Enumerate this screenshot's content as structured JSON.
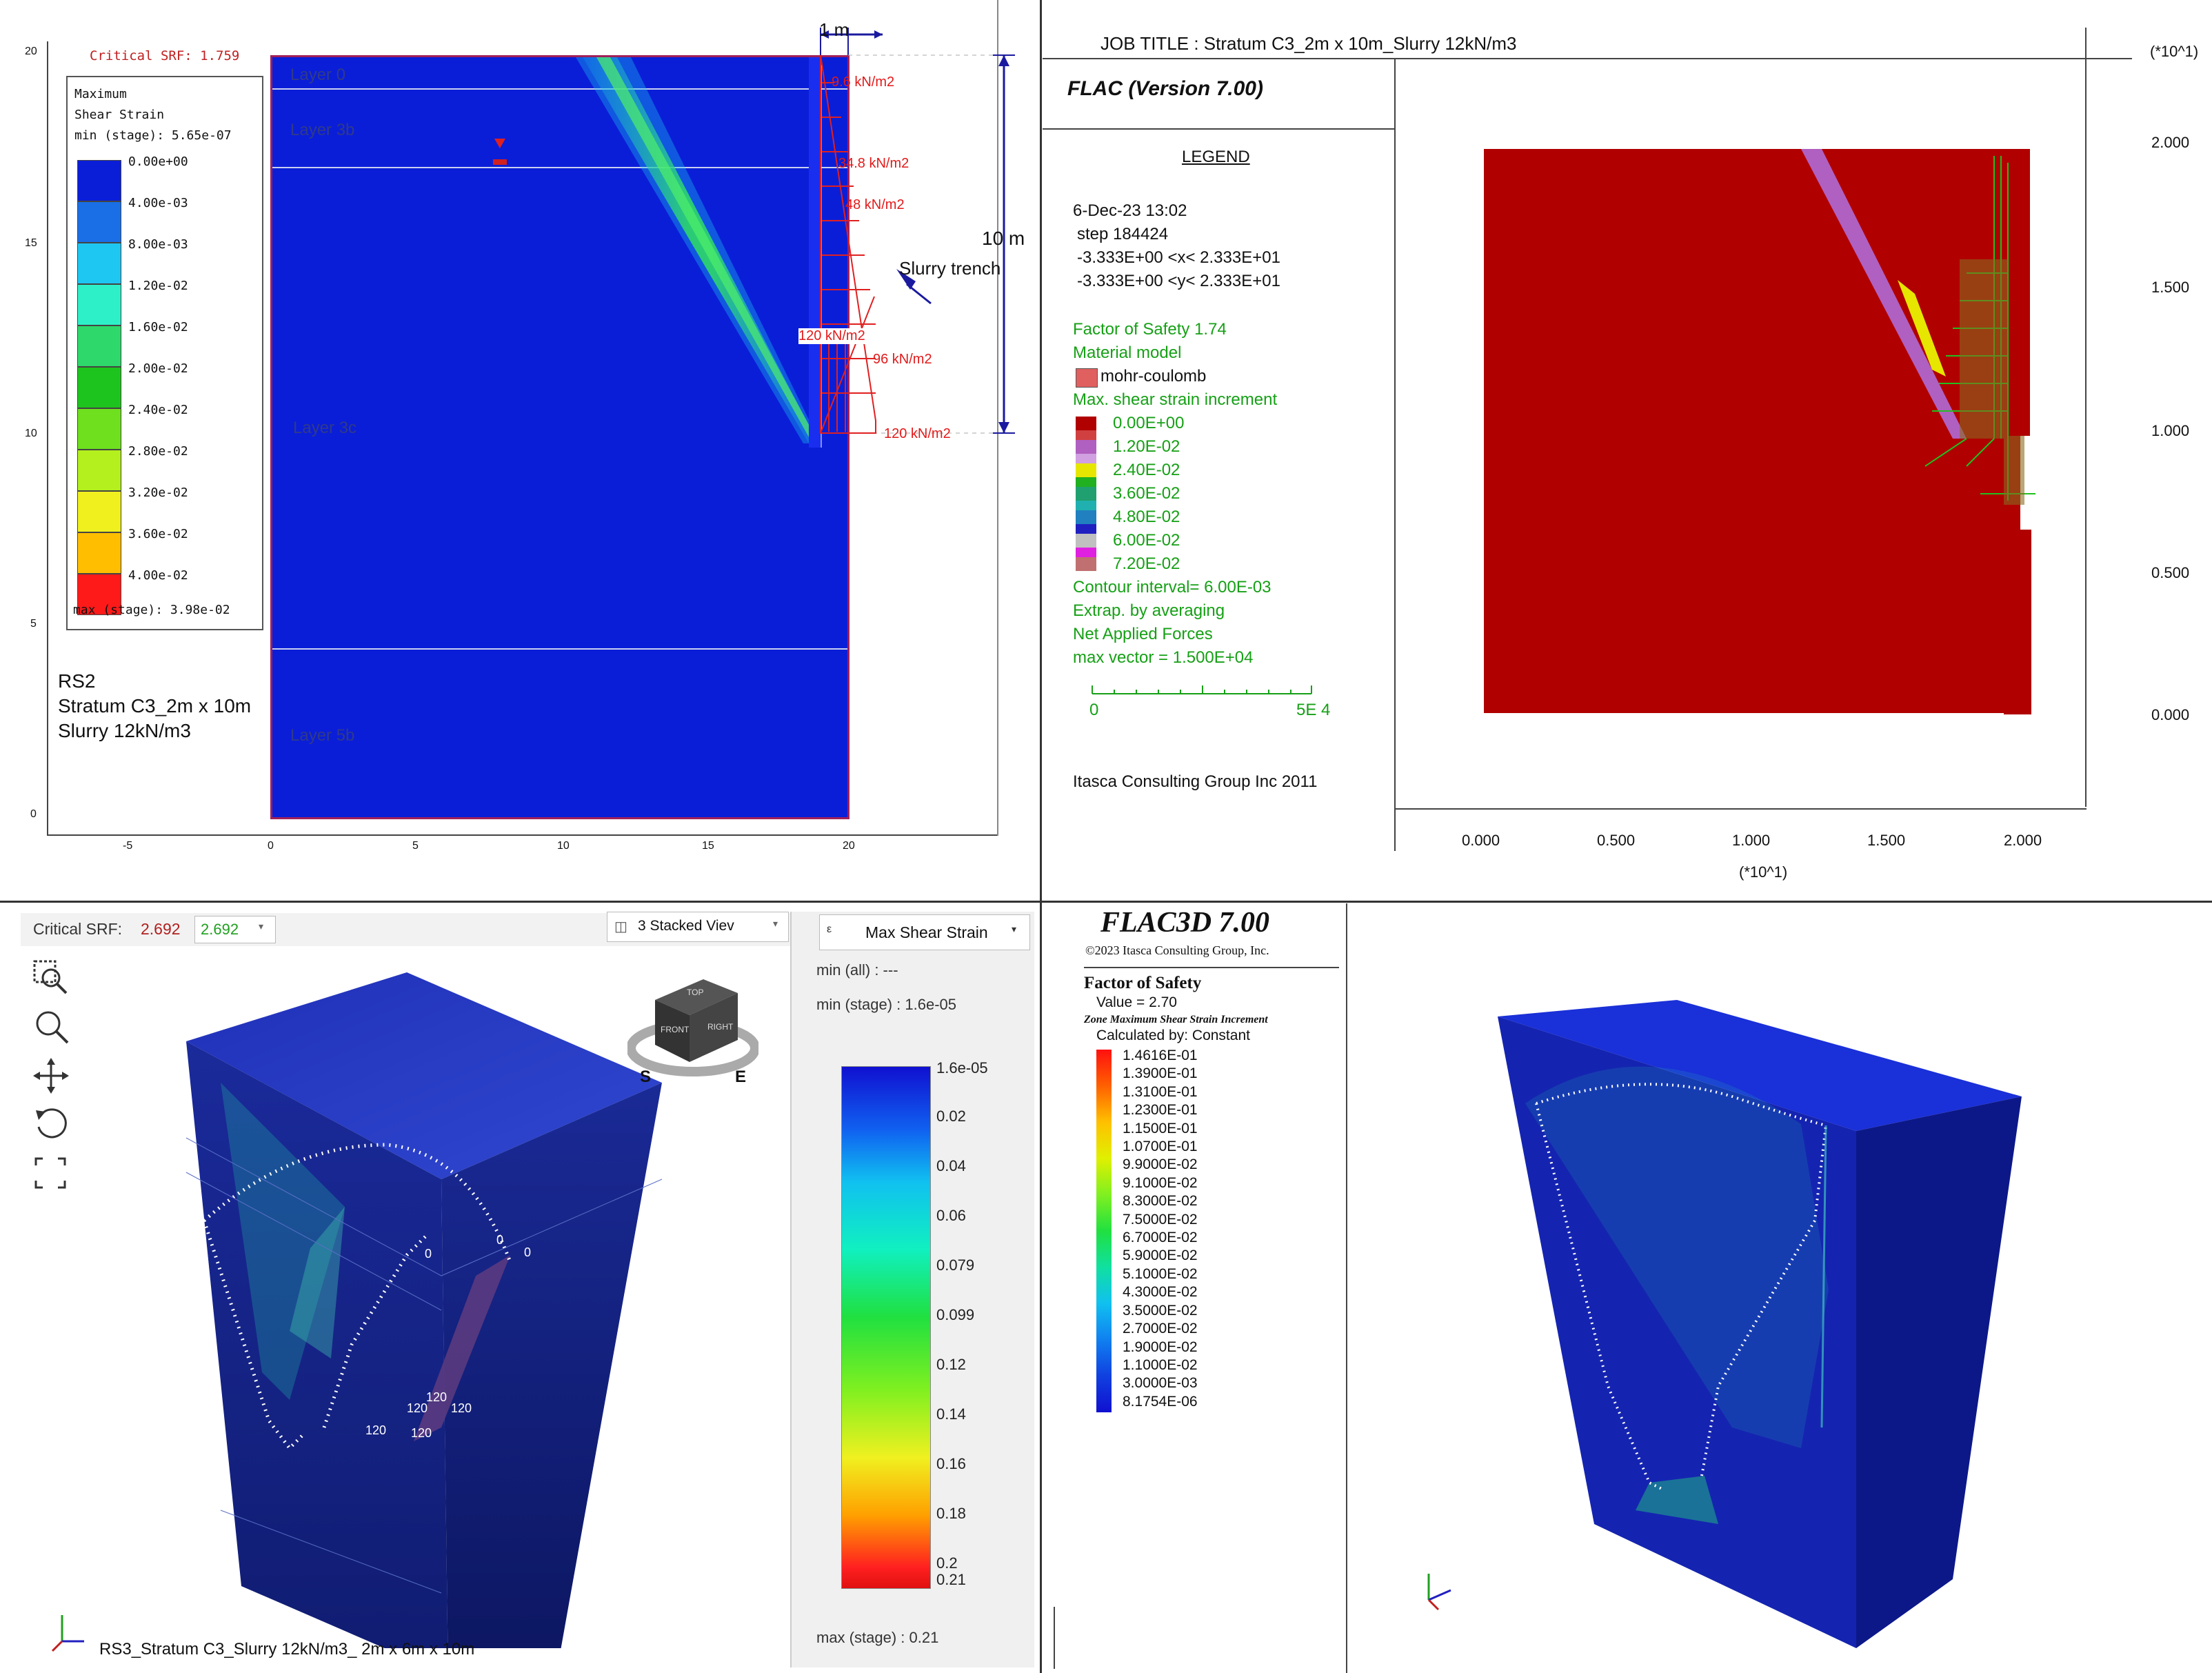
{
  "rs2": {
    "critical_srf": "Critical SRF: 1.759",
    "legend_title_1": "Maximum",
    "legend_title_2": "Shear Strain",
    "legend_min": "min (stage): 5.65e-07",
    "legend_max": "max (stage): 3.98e-02",
    "legend_labels": [
      "0.00e+00",
      "4.00e-03",
      "8.00e-03",
      "1.20e-02",
      "1.60e-02",
      "2.00e-02",
      "2.40e-02",
      "2.80e-02",
      "3.20e-02",
      "3.60e-02",
      "4.00e-02"
    ],
    "legend_colors": [
      "#0a1ed8",
      "#1a6ee6",
      "#1ec6f2",
      "#2ef0c8",
      "#2ed86a",
      "#1ec41e",
      "#6ee01e",
      "#b4f01e",
      "#f0f01e",
      "#ffbe00",
      "#ff1a1a"
    ],
    "info_1": "RS2",
    "info_2": "Stratum C3_2m x 10m",
    "info_3": "Slurry 12kN/m3",
    "layers": [
      "Layer 0",
      "Layer 3b",
      "Layer 3c",
      "Layer 5b"
    ],
    "y_ticks": [
      "20",
      "15",
      "10",
      "5",
      "0"
    ],
    "x_ticks": [
      "-5",
      "0",
      "5",
      "10",
      "15",
      "20"
    ],
    "width_label": "1 m",
    "height_label": "10 m",
    "loads": [
      "9.6 kN/m2",
      "34.8 kN/m2",
      "48 kN/m2",
      "120 kN/m2",
      "96 kN/m2",
      "120 kN/m2"
    ],
    "trench_label": "Slurry trench"
  },
  "flac": {
    "job_title": "JOB TITLE : Stratum C3_2m x 10m_Slurry 12kN/m3",
    "version": "FLAC (Version 7.00)",
    "legend": "LEGEND",
    "date": "6-Dec-23  13:02",
    "step": "step   184424",
    "xrange": "-3.333E+00 <x<  2.333E+01",
    "yrange": "-3.333E+00 <y<  2.333E+01",
    "fos": "Factor of Safety  1.74",
    "material_model": "Material model",
    "mohr": "mohr-coulomb",
    "shear_title": "Max. shear strain increment",
    "shear_labels": [
      "0.00E+00",
      "1.20E-02",
      "2.40E-02",
      "3.60E-02",
      "4.80E-02",
      "6.00E-02",
      "7.20E-02"
    ],
    "shear_colors": [
      "#b00000",
      "#b060c0",
      "#e6e600",
      "#20b020",
      "#20b0b0",
      "#2020c0",
      "#c0c0c0"
    ],
    "contour": "Contour interval=  6.00E-03",
    "extrap": "Extrap. by averaging",
    "net_forces": "Net Applied Forces",
    "max_vector": "max vector =    1.500E+04",
    "scale_0": "0",
    "scale_1": "5E  4",
    "company": "Itasca Consulting Group Inc 2011",
    "multiplier_top": "(*10^1)",
    "multiplier_bottom": "(*10^1)",
    "y_ticks": [
      "2.000",
      "1.500",
      "1.000",
      "0.500",
      "0.000"
    ],
    "x_ticks": [
      "0.000",
      "0.500",
      "1.000",
      "1.500",
      "2.000"
    ]
  },
  "rs3": {
    "critical_srf_label": "Critical SRF:",
    "srf_red": "2.692",
    "srf_dropdown": "2.692",
    "view_button": "3 Stacked Viev",
    "colorbar_title": "Max Shear Strain",
    "min_all": "min (all) :        ---",
    "min_stage": "min (stage) : 1.6e-05",
    "max_stage": "max (stage) : 0.21",
    "colorbar_labels": [
      "1.6e-05",
      "0.02",
      "0.04",
      "0.06",
      "0.079",
      "0.099",
      "0.12",
      "0.14",
      "0.16",
      "0.18",
      "0.2",
      "0.21"
    ],
    "model_caption": "RS3_Stratum C3_Slurry 12kN/m3_ 2m x 6m x 10m",
    "load_labels": [
      "0",
      "0",
      "0",
      "120",
      "120",
      "120",
      "120",
      "120"
    ],
    "cube_labels": [
      "TOP",
      "FRONT",
      "RIGHT"
    ],
    "compass": [
      "S",
      "E"
    ]
  },
  "flac3d": {
    "title": "FLAC3D 7.00",
    "copyright": "©2023 Itasca Consulting Group, Inc.",
    "fos_title": "Factor of Safety",
    "fos_value": "Value = 2.70",
    "zone_title": "Zone Maximum Shear Strain Increment",
    "calc": "Calculated by: Constant",
    "labels": [
      "1.4616E-01",
      "1.3900E-01",
      "1.3100E-01",
      "1.2300E-01",
      "1.1500E-01",
      "1.0700E-01",
      "9.9000E-02",
      "9.1000E-02",
      "8.3000E-02",
      "7.5000E-02",
      "6.7000E-02",
      "5.9000E-02",
      "5.1000E-02",
      "4.3000E-02",
      "3.5000E-02",
      "2.7000E-02",
      "1.9000E-02",
      "1.1000E-02",
      "3.0000E-03",
      "8.1754E-06"
    ]
  }
}
